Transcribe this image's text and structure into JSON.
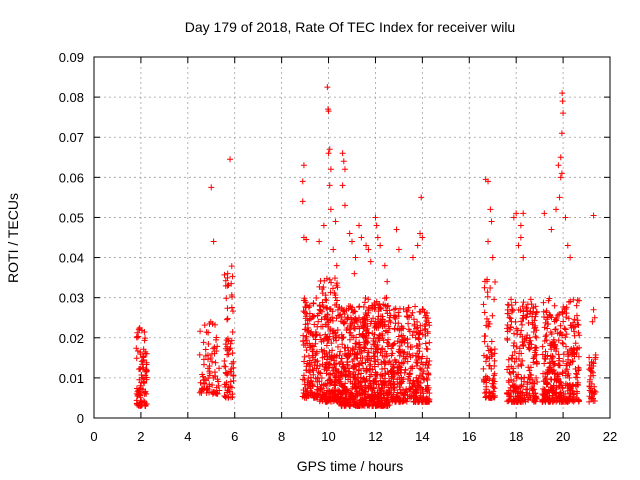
{
  "chart_data": {
    "type": "scatter",
    "title": "Day 179 of 2018, Rate Of TEC Index for receiver wilu",
    "xlabel": "GPS time / hours",
    "ylabel": "ROTI / TECUs",
    "xlim": [
      0,
      22
    ],
    "ylim": [
      0,
      0.09
    ],
    "x_ticks": [
      "0",
      "2",
      "4",
      "6",
      "8",
      "10",
      "12",
      "14",
      "16",
      "18",
      "20",
      "22"
    ],
    "y_ticks": [
      "0",
      "0.01",
      "0.02",
      "0.03",
      "0.04",
      "0.05",
      "0.06",
      "0.07",
      "0.08",
      "0.09"
    ],
    "grid": true,
    "marker": "+",
    "color": "#ff0000",
    "clusters": [
      {
        "x": [
          1.8,
          2.25
        ],
        "y": [
          0.003,
          0.023
        ],
        "n": 90
      },
      {
        "x": [
          4.5,
          5.35
        ],
        "y": [
          0.006,
          0.024
        ],
        "n": 80
      },
      {
        "x": [
          5.55,
          5.95
        ],
        "y": [
          0.005,
          0.038
        ],
        "n": 70
      },
      {
        "x": [
          8.9,
          9.6
        ],
        "y": [
          0.005,
          0.03
        ],
        "n": 160
      },
      {
        "x": [
          9.6,
          10.5
        ],
        "y": [
          0.004,
          0.035
        ],
        "n": 260
      },
      {
        "x": [
          10.5,
          11.5
        ],
        "y": [
          0.003,
          0.028
        ],
        "n": 320
      },
      {
        "x": [
          11.5,
          12.6
        ],
        "y": [
          0.003,
          0.03
        ],
        "n": 360
      },
      {
        "x": [
          12.6,
          14.3
        ],
        "y": [
          0.004,
          0.028
        ],
        "n": 380
      },
      {
        "x": [
          16.6,
          17.1
        ],
        "y": [
          0.005,
          0.035
        ],
        "n": 90
      },
      {
        "x": [
          17.6,
          18.9
        ],
        "y": [
          0.004,
          0.03
        ],
        "n": 260
      },
      {
        "x": [
          19.1,
          20.7
        ],
        "y": [
          0.004,
          0.03
        ],
        "n": 360
      },
      {
        "x": [
          21.1,
          21.4
        ],
        "y": [
          0.004,
          0.016
        ],
        "n": 40
      }
    ],
    "points": [
      [
        5.0,
        0.0575
      ],
      [
        5.1,
        0.044
      ],
      [
        5.8,
        0.0645
      ],
      [
        5.7,
        0.036
      ],
      [
        8.95,
        0.063
      ],
      [
        8.9,
        0.059
      ],
      [
        8.9,
        0.054
      ],
      [
        8.95,
        0.045
      ],
      [
        9.05,
        0.0445
      ],
      [
        9.6,
        0.044
      ],
      [
        9.8,
        0.048
      ],
      [
        9.95,
        0.0825
      ],
      [
        9.98,
        0.077
      ],
      [
        10.0,
        0.0765
      ],
      [
        10.05,
        0.067
      ],
      [
        10.0,
        0.066
      ],
      [
        10.1,
        0.062
      ],
      [
        10.05,
        0.058
      ],
      [
        10.1,
        0.052
      ],
      [
        10.2,
        0.042
      ],
      [
        10.3,
        0.049
      ],
      [
        10.35,
        0.038
      ],
      [
        10.6,
        0.066
      ],
      [
        10.65,
        0.064
      ],
      [
        10.7,
        0.062
      ],
      [
        10.6,
        0.058
      ],
      [
        10.7,
        0.053
      ],
      [
        10.9,
        0.046
      ],
      [
        11.0,
        0.044
      ],
      [
        11.1,
        0.036
      ],
      [
        11.15,
        0.04
      ],
      [
        11.3,
        0.048
      ],
      [
        11.4,
        0.045
      ],
      [
        11.6,
        0.043
      ],
      [
        11.7,
        0.042
      ],
      [
        11.8,
        0.039
      ],
      [
        12.0,
        0.05
      ],
      [
        12.05,
        0.048
      ],
      [
        12.1,
        0.045
      ],
      [
        12.2,
        0.043
      ],
      [
        12.4,
        0.038
      ],
      [
        12.5,
        0.034
      ],
      [
        12.9,
        0.047
      ],
      [
        13.0,
        0.042
      ],
      [
        13.6,
        0.04
      ],
      [
        13.8,
        0.043
      ],
      [
        13.9,
        0.046
      ],
      [
        13.95,
        0.055
      ],
      [
        14.0,
        0.045
      ],
      [
        16.7,
        0.0595
      ],
      [
        16.8,
        0.059
      ],
      [
        16.9,
        0.052
      ],
      [
        16.95,
        0.049
      ],
      [
        16.8,
        0.044
      ],
      [
        17.0,
        0.04
      ],
      [
        17.9,
        0.05
      ],
      [
        18.0,
        0.051
      ],
      [
        18.2,
        0.048
      ],
      [
        18.3,
        0.051
      ],
      [
        18.1,
        0.043
      ],
      [
        18.2,
        0.045
      ],
      [
        18.3,
        0.04
      ],
      [
        19.2,
        0.051
      ],
      [
        19.5,
        0.047
      ],
      [
        19.8,
        0.063
      ],
      [
        19.9,
        0.06
      ],
      [
        19.95,
        0.061
      ],
      [
        19.9,
        0.065
      ],
      [
        19.95,
        0.071
      ],
      [
        20.0,
        0.076
      ],
      [
        19.98,
        0.079
      ],
      [
        19.96,
        0.081
      ],
      [
        19.85,
        0.055
      ],
      [
        19.7,
        0.052
      ],
      [
        20.1,
        0.05
      ],
      [
        20.3,
        0.04
      ],
      [
        20.2,
        0.043
      ],
      [
        21.3,
        0.0505
      ],
      [
        21.3,
        0.027
      ],
      [
        21.25,
        0.024
      ],
      [
        21.35,
        0.025
      ]
    ]
  }
}
